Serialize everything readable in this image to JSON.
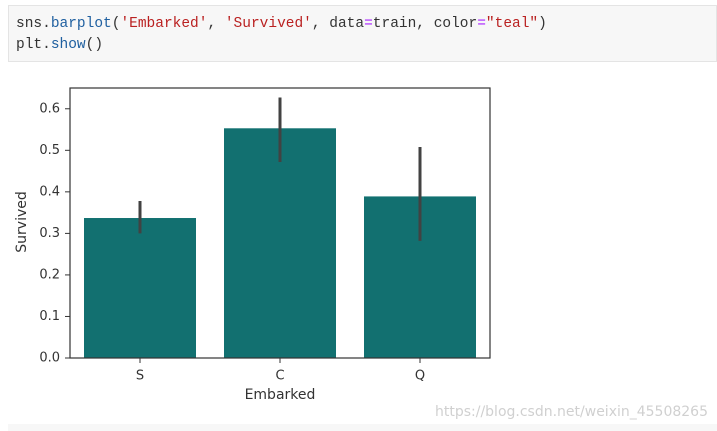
{
  "code": {
    "lines": [
      [
        "sns.",
        "barplot",
        "(",
        "'Embarked'",
        ", ",
        "'Survived'",
        ", data",
        "=",
        "train, color",
        "=",
        "\"teal\"",
        ")"
      ],
      [
        "plt.",
        "show",
        "()"
      ]
    ]
  },
  "chart_data": {
    "type": "bar",
    "x_label": "Embarked",
    "y_label": "Survived",
    "categories": [
      "S",
      "C",
      "Q"
    ],
    "values": [
      0.337,
      0.553,
      0.389
    ],
    "ci": [
      [
        0.3,
        0.378
      ],
      [
        0.472,
        0.627
      ],
      [
        0.282,
        0.508
      ]
    ],
    "color": "#127070",
    "error_color": "#424242",
    "ylim": [
      0,
      0.65
    ],
    "yticks": [
      {
        "value": 0,
        "label": "0.0"
      },
      0.1,
      0.2,
      0.3,
      0.4,
      0.5,
      0.6
    ]
  },
  "watermark": "https://blog.csdn.net/weixin_45508265"
}
